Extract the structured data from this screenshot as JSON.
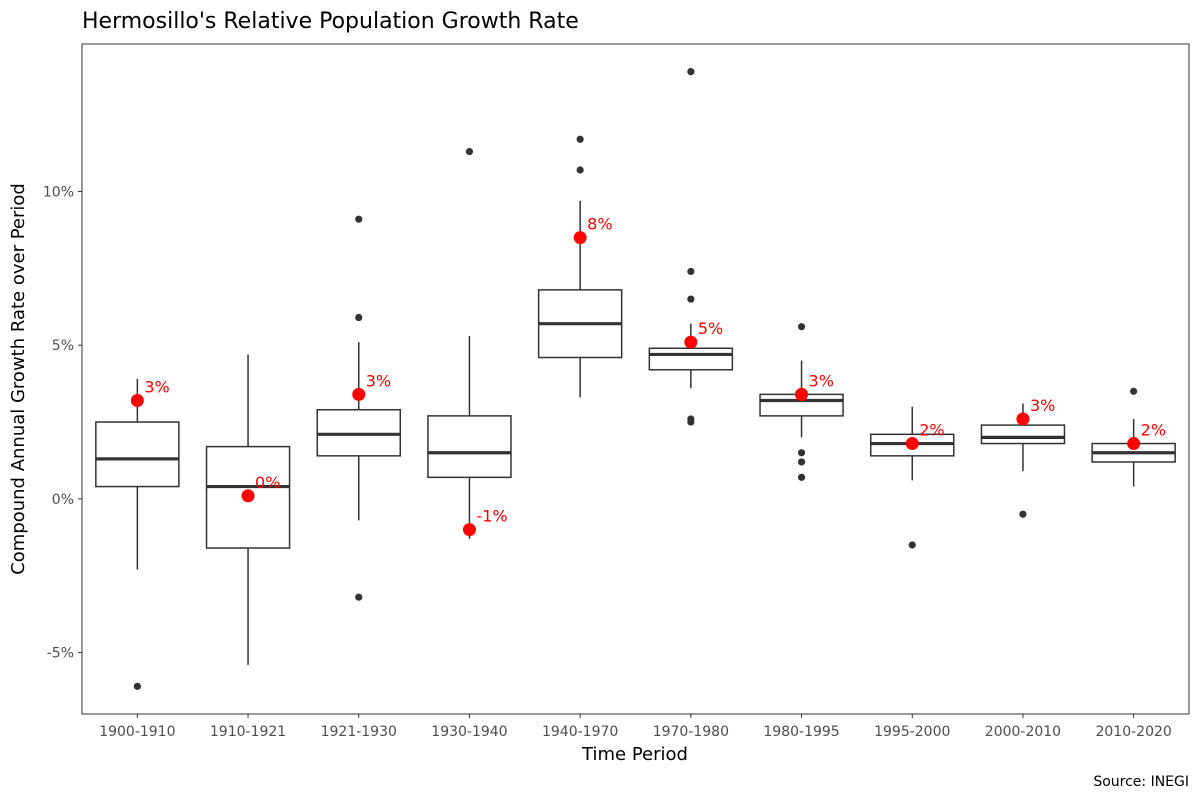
{
  "chart_data": {
    "type": "boxplot",
    "title": "Hermosillo's Relative Population Growth Rate",
    "xlabel": "Time Period",
    "ylabel": "Compound Annual Growth Rate over Period",
    "caption": "Source: INEGI",
    "ylim": [
      -7.0,
      14.8
    ],
    "y_ticks": [
      -5,
      0,
      5,
      10
    ],
    "y_tick_labels": [
      "-5%",
      "0%",
      "5%",
      "10%"
    ],
    "grid": false,
    "box_color": "#333333",
    "highlight_color": "#ff0000",
    "categories": [
      "1900-1910",
      "1910-1921",
      "1921-1930",
      "1930-1940",
      "1940-1970",
      "1970-1980",
      "1980-1995",
      "1995-2000",
      "2000-2010",
      "2010-2020"
    ],
    "boxes": [
      {
        "category": "1900-1910",
        "whisker_low": -2.3,
        "q1": 0.4,
        "median": 1.3,
        "q3": 2.5,
        "whisker_high": 3.9,
        "outliers": [
          -6.1
        ]
      },
      {
        "category": "1910-1921",
        "whisker_low": -5.4,
        "q1": -1.6,
        "median": 0.4,
        "q3": 1.7,
        "whisker_high": 4.7,
        "outliers": []
      },
      {
        "category": "1921-1930",
        "whisker_low": -0.7,
        "q1": 1.4,
        "median": 2.1,
        "q3": 2.9,
        "whisker_high": 5.1,
        "outliers": [
          -3.2,
          5.9,
          9.1
        ]
      },
      {
        "category": "1930-1940",
        "whisker_low": -1.3,
        "q1": 0.7,
        "median": 1.5,
        "q3": 2.7,
        "whisker_high": 5.3,
        "outliers": [
          11.3
        ]
      },
      {
        "category": "1940-1970",
        "whisker_low": 3.3,
        "q1": 4.6,
        "median": 5.7,
        "q3": 6.8,
        "whisker_high": 9.7,
        "outliers": [
          10.7,
          11.7
        ]
      },
      {
        "category": "1970-1980",
        "whisker_low": 3.6,
        "q1": 4.2,
        "median": 4.7,
        "q3": 4.9,
        "whisker_high": 5.7,
        "outliers": [
          2.5,
          2.6,
          6.5,
          7.4,
          13.9
        ]
      },
      {
        "category": "1980-1995",
        "whisker_low": 2.0,
        "q1": 2.7,
        "median": 3.2,
        "q3": 3.4,
        "whisker_high": 4.5,
        "outliers": [
          0.7,
          1.2,
          1.5,
          5.6
        ]
      },
      {
        "category": "1995-2000",
        "whisker_low": 0.6,
        "q1": 1.4,
        "median": 1.8,
        "q3": 2.1,
        "whisker_high": 3.0,
        "outliers": [
          -1.5
        ]
      },
      {
        "category": "2000-2010",
        "whisker_low": 0.9,
        "q1": 1.8,
        "median": 2.0,
        "q3": 2.4,
        "whisker_high": 3.1,
        "outliers": [
          -0.5
        ]
      },
      {
        "category": "2010-2020",
        "whisker_low": 0.4,
        "q1": 1.2,
        "median": 1.5,
        "q3": 1.8,
        "whisker_high": 2.6,
        "outliers": [
          3.5
        ]
      }
    ],
    "highlight": [
      {
        "category": "1900-1910",
        "value": 3.2,
        "label": "3%"
      },
      {
        "category": "1910-1921",
        "value": 0.1,
        "label": "0%"
      },
      {
        "category": "1921-1930",
        "value": 3.4,
        "label": "3%"
      },
      {
        "category": "1930-1940",
        "value": -1.0,
        "label": "-1%"
      },
      {
        "category": "1940-1970",
        "value": 8.5,
        "label": "8%"
      },
      {
        "category": "1970-1980",
        "value": 5.1,
        "label": "5%"
      },
      {
        "category": "1980-1995",
        "value": 3.4,
        "label": "3%"
      },
      {
        "category": "1995-2000",
        "value": 1.8,
        "label": "2%"
      },
      {
        "category": "2000-2010",
        "value": 2.6,
        "label": "3%"
      },
      {
        "category": "2010-2020",
        "value": 1.8,
        "label": "2%"
      }
    ]
  }
}
